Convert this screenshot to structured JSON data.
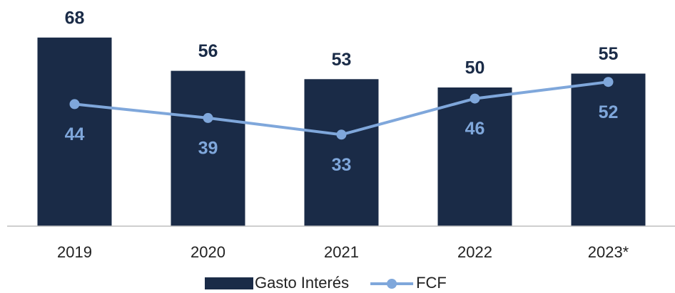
{
  "chart_data": {
    "type": "bar",
    "categories": [
      "2019",
      "2020",
      "2021",
      "2022",
      "2023*"
    ],
    "series": [
      {
        "name": "Gasto Interés",
        "type": "bar",
        "color": "#1a2b47",
        "values": [
          68,
          56,
          53,
          50,
          55
        ]
      },
      {
        "name": "FCF",
        "type": "line",
        "color": "#7fa7db",
        "values": [
          44,
          39,
          33,
          46,
          52
        ]
      }
    ],
    "ylim": [
      0,
      80
    ],
    "legend": "bottom"
  }
}
